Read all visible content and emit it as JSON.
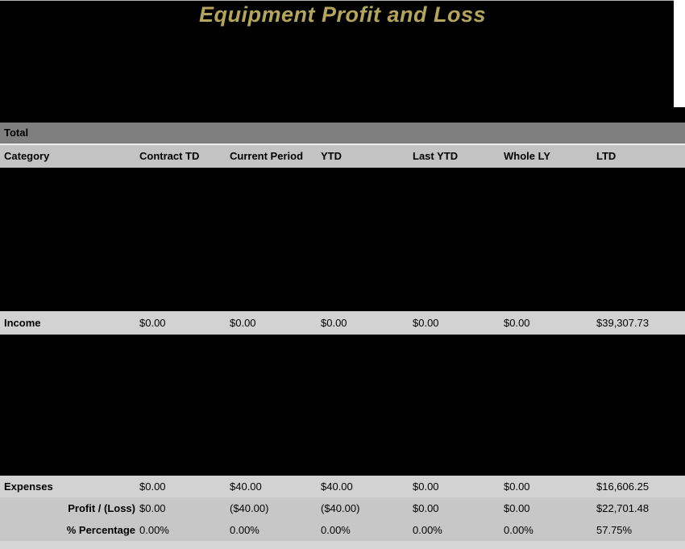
{
  "title": "Equipment Profit and Loss",
  "total_section": {
    "label": "Total"
  },
  "columns": [
    "Category",
    "Contract TD",
    "Current Period",
    "YTD",
    "Last YTD",
    "Whole LY",
    "LTD"
  ],
  "rows": {
    "income": {
      "label": "Income",
      "values": [
        "$0.00",
        "$0.00",
        "$0.00",
        "$0.00",
        "$0.00",
        "$39,307.73"
      ]
    },
    "expenses": {
      "label": "Expenses",
      "values": [
        "$0.00",
        "$40.00",
        "$40.00",
        "$0.00",
        "$0.00",
        "$16,606.25"
      ]
    },
    "profit_loss": {
      "label": "Profit / (Loss)",
      "values": [
        "$0.00",
        "($40.00)",
        "($40.00)",
        "$0.00",
        "$0.00",
        "$22,701.48"
      ]
    },
    "percentage": {
      "label": "% Percentage",
      "values": [
        "0.00%",
        "0.00%",
        "0.00%",
        "0.00%",
        "0.00%",
        "57.75%"
      ]
    }
  },
  "colors": {
    "title_text": "#b3a65c",
    "header_bg": "#000000",
    "total_bar_bg": "#7f7f7f",
    "column_header_bg": "#c3c3c3",
    "data_row_bg": "#d2d2d2",
    "summary_row_bg": "#c7c7c7",
    "footer_strip_bg": "#d5d5d5"
  }
}
